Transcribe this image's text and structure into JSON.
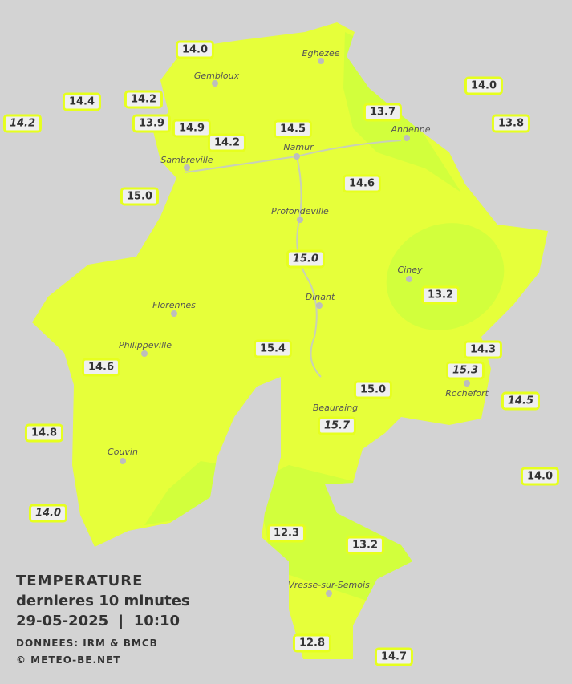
{
  "legend": {
    "title": "TEMPERATURE",
    "period": "dernieres 10 minutes",
    "datetime": "29-05-2025  |  10:10",
    "source": "DONNEES: IRM & BMCB",
    "copyright": "© METEO-BE.NET"
  },
  "colors": {
    "background": "#d3d3d3",
    "zone_warm": "#e6ff3a",
    "zone_cool": "#ccff33",
    "label_border": "#e6ff1e"
  },
  "towns": [
    "Eghezee",
    "Gembloux",
    "Andenne",
    "Namur",
    "Sambreville",
    "Profondeville",
    "Ciney",
    "Dinant",
    "Florennes",
    "Philippeville",
    "Rochefort",
    "Beauraing",
    "Couvin",
    "Vresse-sur-Semois"
  ],
  "readings": [
    "14.0",
    "14.4",
    "14.2",
    "14.2",
    "13.9",
    "14.9",
    "14.2",
    "14.5",
    "13.7",
    "14.0",
    "13.8",
    "15.0",
    "14.6",
    "15.0",
    "13.2",
    "15.4",
    "14.6",
    "14.3",
    "15.3",
    "15.0",
    "14.5",
    "15.7",
    "14.8",
    "14.0",
    "14.0",
    "12.3",
    "13.2",
    "12.8",
    "14.7"
  ]
}
